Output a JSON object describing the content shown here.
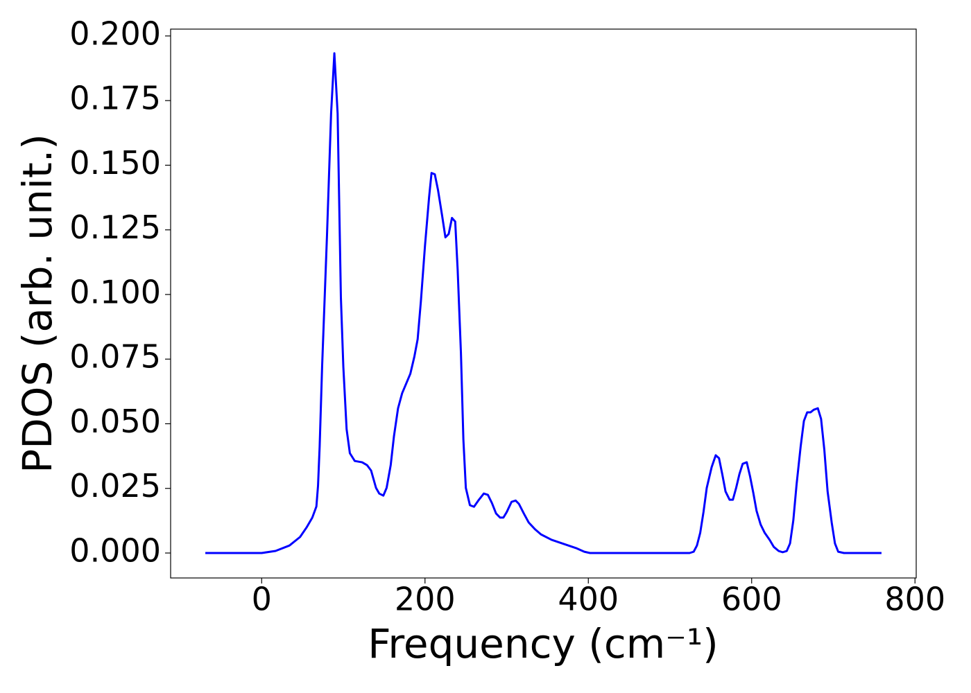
{
  "chart_data": {
    "type": "line",
    "x_label": "Frequency (cm⁻¹)",
    "y_label": "PDOS (arb. unit.)",
    "x": [
      -69,
      0,
      17,
      34,
      47,
      55,
      62,
      67,
      69,
      71,
      74,
      80,
      85,
      89,
      93,
      97,
      100,
      104,
      108,
      114,
      123,
      129,
      134,
      140,
      144,
      149,
      153,
      158,
      162,
      167,
      172,
      182,
      187,
      191,
      195,
      200,
      205,
      208,
      212,
      216,
      221,
      225,
      229,
      233,
      237,
      240,
      244,
      247,
      250,
      255,
      260,
      266,
      272,
      277,
      282,
      287,
      292,
      296,
      300,
      306,
      311,
      315,
      321,
      327,
      335,
      342,
      355,
      370,
      385,
      395,
      402,
      524,
      529,
      533,
      537,
      541,
      545,
      551,
      556,
      560,
      564,
      568,
      573,
      577,
      581,
      585,
      589,
      594,
      598,
      602,
      606,
      611,
      616,
      622,
      627,
      633,
      638,
      643,
      647,
      651,
      655,
      660,
      664,
      668,
      672,
      676,
      681,
      685,
      689,
      693,
      698,
      702,
      706,
      713,
      759
    ],
    "series": [
      {
        "color": "#0000ff",
        "values": [
          0,
          0,
          0.0008,
          0.0029,
          0.0062,
          0.0099,
          0.0137,
          0.018,
          0.026,
          0.0412,
          0.072,
          0.123,
          0.17,
          0.1933,
          0.17,
          0.0988,
          0.072,
          0.0479,
          0.0386,
          0.0356,
          0.0351,
          0.034,
          0.0319,
          0.0252,
          0.023,
          0.0222,
          0.0252,
          0.034,
          0.0452,
          0.056,
          0.0618,
          0.0693,
          0.076,
          0.0827,
          0.0975,
          0.1189,
          0.1376,
          0.147,
          0.1465,
          0.1403,
          0.1304,
          0.1221,
          0.1234,
          0.1296,
          0.1282,
          0.1095,
          0.0774,
          0.0439,
          0.0252,
          0.0185,
          0.0179,
          0.0206,
          0.023,
          0.0225,
          0.0193,
          0.0153,
          0.0137,
          0.0137,
          0.0158,
          0.0198,
          0.0203,
          0.019,
          0.0153,
          0.0118,
          0.0091,
          0.0072,
          0.0051,
          0.0035,
          0.0019,
          0.0005,
          0,
          0,
          0.0005,
          0.0029,
          0.0078,
          0.0158,
          0.0252,
          0.0332,
          0.0378,
          0.0367,
          0.0305,
          0.0238,
          0.0206,
          0.0206,
          0.0252,
          0.0305,
          0.0345,
          0.0351,
          0.0297,
          0.0233,
          0.0163,
          0.011,
          0.0078,
          0.0051,
          0.0024,
          0.0008,
          0.0003,
          0.0008,
          0.0037,
          0.0126,
          0.0265,
          0.0412,
          0.0511,
          0.0544,
          0.0544,
          0.0554,
          0.056,
          0.0519,
          0.0399,
          0.0238,
          0.0118,
          0.0037,
          0.0005,
          0,
          0
        ]
      }
    ],
    "xlim": [
      -111.5,
      801.5
    ],
    "ylim": [
      -0.00965,
      0.20265
    ],
    "xticks": [
      0,
      200,
      400,
      600,
      800
    ],
    "yticks": [
      {
        "value": 0,
        "label": "0.000"
      },
      {
        "value": 0.025,
        "label": "0.025"
      },
      {
        "value": 0.05,
        "label": "0.050"
      },
      {
        "value": 0.075,
        "label": "0.075"
      },
      {
        "value": 0.1,
        "label": "0.100"
      },
      {
        "value": 0.125,
        "label": "0.125"
      },
      {
        "value": 0.15,
        "label": "0.150"
      },
      {
        "value": 0.175,
        "label": "0.175"
      },
      {
        "value": 0.2,
        "label": "0.200"
      }
    ],
    "grid": false
  }
}
